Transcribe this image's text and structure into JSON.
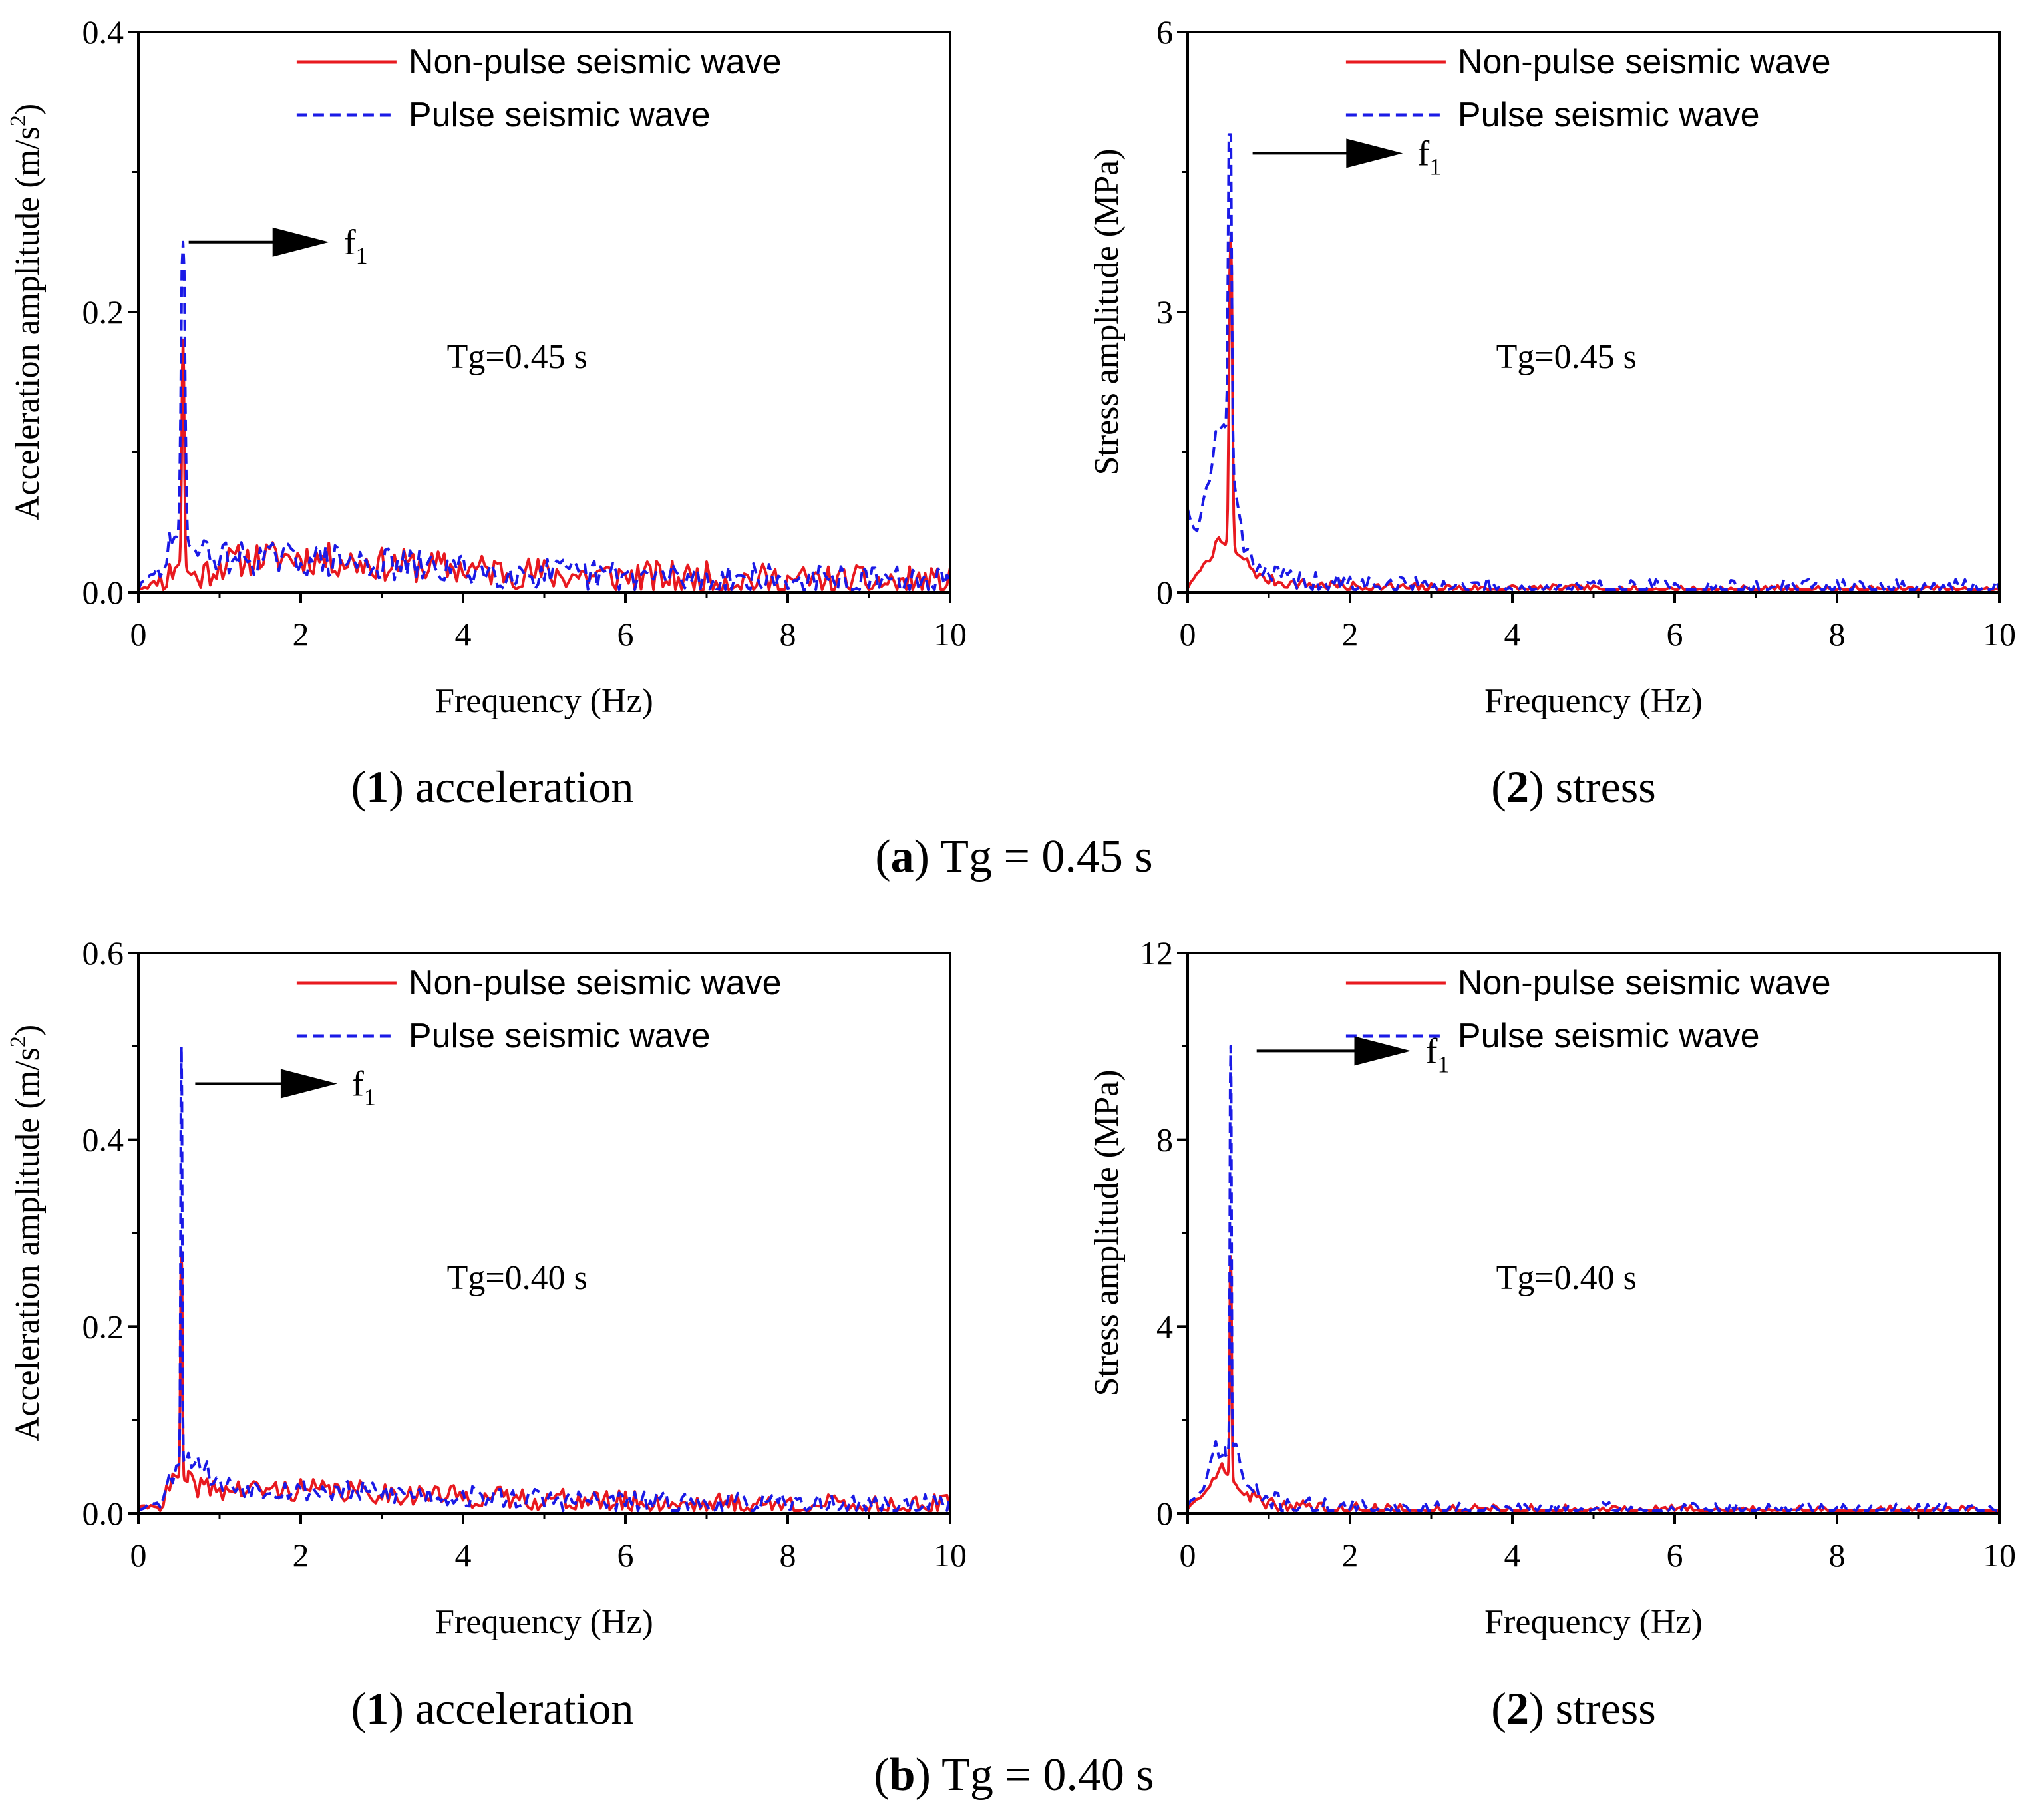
{
  "figure": {
    "rows": [
      {
        "label_letter": "a",
        "label_text": "Tg = 0.45 s",
        "panels": [
          {
            "caption_num": "1",
            "caption_text": "acceleration"
          },
          {
            "caption_num": "2",
            "caption_text": "stress"
          }
        ]
      },
      {
        "label_letter": "b",
        "label_text": "Tg = 0.40 s",
        "panels": [
          {
            "caption_num": "1",
            "caption_text": "acceleration"
          },
          {
            "caption_num": "2",
            "caption_text": "stress"
          }
        ]
      }
    ]
  },
  "colors": {
    "non_pulse": "#e8191f",
    "pulse": "#1a1ae6",
    "axis": "#000000"
  },
  "chart_data": [
    {
      "id": "a1",
      "type": "line",
      "title": "",
      "xlabel": "Frequency (Hz)",
      "ylabel_main": "Acceleration amplitude (m/s",
      "ylabel_sup": "2",
      "ylabel_tail": ")",
      "xlim": [
        0,
        10
      ],
      "ylim": [
        0,
        0.4
      ],
      "xticks": [
        0,
        2,
        4,
        6,
        8,
        10
      ],
      "xtick_labels": [
        "0",
        "2",
        "4",
        "6",
        "8",
        "10"
      ],
      "yticks": [
        0,
        0.2,
        0.4
      ],
      "ytick_labels": [
        "0.0",
        "0.2",
        "0.4"
      ],
      "legend": [
        "Non-pulse seismic wave",
        "Pulse seismic wave"
      ],
      "legend_position": "top-center",
      "annotation": "Tg=0.45 s",
      "annotation_at": [
        3.8,
        0.16
      ],
      "peak_label": "f",
      "peak_label_sub": "1",
      "arrow": {
        "from": [
          0.62,
          0.25
        ],
        "to": [
          2.35,
          0.25
        ]
      },
      "series": [
        {
          "name": "Non-pulse seismic wave",
          "style": "solid",
          "seed": 11,
          "peak_f": 0.55,
          "peak_v": 0.18,
          "peak_w": 0.04,
          "base": [
            [
              0,
              0.003
            ],
            [
              0.3,
              0.008
            ],
            [
              0.5,
              0.02
            ],
            [
              0.7,
              0.01
            ],
            [
              1,
              0.02
            ],
            [
              1.5,
              0.025
            ],
            [
              2,
              0.025
            ],
            [
              3,
              0.02
            ],
            [
              4,
              0.017
            ],
            [
              5,
              0.013
            ],
            [
              6,
              0.011
            ],
            [
              7,
              0.01
            ],
            [
              8,
              0.008
            ],
            [
              9,
              0.007
            ],
            [
              10,
              0.006
            ]
          ],
          "noise": 0.012
        },
        {
          "name": "Pulse seismic wave",
          "style": "dashed",
          "seed": 29,
          "peak_f": 0.55,
          "peak_v": 0.25,
          "peak_w": 0.06,
          "base": [
            [
              0,
              0.003
            ],
            [
              0.3,
              0.02
            ],
            [
              0.45,
              0.04
            ],
            [
              0.7,
              0.03
            ],
            [
              1,
              0.025
            ],
            [
              1.5,
              0.024
            ],
            [
              2,
              0.024
            ],
            [
              3,
              0.02
            ],
            [
              4,
              0.016
            ],
            [
              5,
              0.013
            ],
            [
              6,
              0.011
            ],
            [
              7,
              0.01
            ],
            [
              8,
              0.008
            ],
            [
              9,
              0.007
            ],
            [
              10,
              0.006
            ]
          ],
          "noise": 0.012
        }
      ]
    },
    {
      "id": "a2",
      "type": "line",
      "title": "",
      "xlabel": "Frequency (Hz)",
      "ylabel_main": "Stress amplitude (MPa)",
      "ylabel_sup": "",
      "ylabel_tail": "",
      "xlim": [
        0,
        10
      ],
      "ylim": [
        0,
        6
      ],
      "xticks": [
        0,
        2,
        4,
        6,
        8,
        10
      ],
      "xtick_labels": [
        "0",
        "2",
        "4",
        "6",
        "8",
        "10"
      ],
      "yticks": [
        0,
        3,
        6
      ],
      "ytick_labels": [
        "0",
        "3",
        "6"
      ],
      "legend": [
        "Non-pulse seismic wave",
        "Pulse seismic wave"
      ],
      "legend_position": "top-center",
      "annotation": "Tg=0.45 s",
      "annotation_at": [
        3.8,
        2.4
      ],
      "peak_label": "f",
      "peak_label_sub": "1",
      "arrow": {
        "from": [
          0.8,
          4.7
        ],
        "to": [
          2.65,
          4.7
        ]
      },
      "series": [
        {
          "name": "Non-pulse seismic wave",
          "style": "solid",
          "seed": 7,
          "peak_f": 0.53,
          "peak_v": 3.8,
          "peak_w": 0.05,
          "base": [
            [
              0,
              0.05
            ],
            [
              0.2,
              0.3
            ],
            [
              0.4,
              0.55
            ],
            [
              0.7,
              0.35
            ],
            [
              0.9,
              0.15
            ],
            [
              1.2,
              0.1
            ],
            [
              2,
              0.06
            ],
            [
              3,
              0.04
            ],
            [
              5,
              0.02
            ],
            [
              10,
              0.01
            ]
          ],
          "noise": 0.06
        },
        {
          "name": "Pulse seismic wave",
          "style": "dashed",
          "seed": 19,
          "peak_f": 0.52,
          "peak_v": 4.9,
          "peak_w": 0.05,
          "base": [
            [
              0,
              0.9
            ],
            [
              0.1,
              0.6
            ],
            [
              0.25,
              1.2
            ],
            [
              0.35,
              1.7
            ],
            [
              0.45,
              1.8
            ],
            [
              0.7,
              0.5
            ],
            [
              0.9,
              0.25
            ],
            [
              1.2,
              0.15
            ],
            [
              1.5,
              0.1
            ],
            [
              2,
              0.08
            ],
            [
              3,
              0.05
            ],
            [
              5,
              0.03
            ],
            [
              10,
              0.02
            ]
          ],
          "noise": 0.12
        }
      ]
    },
    {
      "id": "b1",
      "type": "line",
      "title": "",
      "xlabel": "Frequency (Hz)",
      "ylabel_main": "Acceleration amplitude (m/s",
      "ylabel_sup": "2",
      "ylabel_tail": ")",
      "xlim": [
        0,
        10
      ],
      "ylim": [
        0,
        0.6
      ],
      "xticks": [
        0,
        2,
        4,
        6,
        8,
        10
      ],
      "xtick_labels": [
        "0",
        "2",
        "4",
        "6",
        "8",
        "10"
      ],
      "yticks": [
        0,
        0.2,
        0.4,
        0.6
      ],
      "ytick_labels": [
        "0.0",
        "0.2",
        "0.4",
        "0.6"
      ],
      "legend": [
        "Non-pulse seismic wave",
        "Pulse seismic wave"
      ],
      "legend_position": "top-center",
      "annotation": "Tg=0.40 s",
      "annotation_at": [
        3.8,
        0.24
      ],
      "peak_label": "f",
      "peak_label_sub": "1",
      "arrow": {
        "from": [
          0.7,
          0.46
        ],
        "to": [
          2.45,
          0.46
        ]
      },
      "series": [
        {
          "name": "Non-pulse seismic wave",
          "style": "solid",
          "seed": 41,
          "peak_f": 0.53,
          "peak_v": 0.28,
          "peak_w": 0.03,
          "base": [
            [
              0,
              0.005
            ],
            [
              0.3,
              0.01
            ],
            [
              0.45,
              0.04
            ],
            [
              0.7,
              0.03
            ],
            [
              1,
              0.025
            ],
            [
              2,
              0.025
            ],
            [
              3,
              0.022
            ],
            [
              4,
              0.018
            ],
            [
              5,
              0.015
            ],
            [
              6,
              0.012
            ],
            [
              7,
              0.01
            ],
            [
              8,
              0.009
            ],
            [
              9,
              0.008
            ],
            [
              10,
              0.008
            ]
          ],
          "noise": 0.012
        },
        {
          "name": "Pulse seismic wave",
          "style": "dashed",
          "seed": 53,
          "peak_f": 0.53,
          "peak_v": 0.5,
          "peak_w": 0.025,
          "base": [
            [
              0,
              0.005
            ],
            [
              0.3,
              0.015
            ],
            [
              0.45,
              0.05
            ],
            [
              0.7,
              0.06
            ],
            [
              1,
              0.03
            ],
            [
              2,
              0.025
            ],
            [
              3,
              0.022
            ],
            [
              4,
              0.018
            ],
            [
              5,
              0.015
            ],
            [
              6,
              0.012
            ],
            [
              7,
              0.01
            ],
            [
              8,
              0.009
            ],
            [
              9,
              0.008
            ],
            [
              10,
              0.008
            ]
          ],
          "noise": 0.012
        }
      ]
    },
    {
      "id": "b2",
      "type": "line",
      "title": "",
      "xlabel": "Frequency (Hz)",
      "ylabel_main": "Stress amplitude (MPa)",
      "ylabel_sup": "",
      "ylabel_tail": "",
      "xlim": [
        0,
        10
      ],
      "ylim": [
        0,
        12
      ],
      "xticks": [
        0,
        2,
        4,
        6,
        8,
        10
      ],
      "xtick_labels": [
        "0",
        "2",
        "4",
        "6",
        "8",
        "10"
      ],
      "yticks": [
        0,
        4,
        8,
        12
      ],
      "ytick_labels": [
        "0",
        "4",
        "8",
        "12"
      ],
      "legend": [
        "Non-pulse seismic wave",
        "Pulse seismic wave"
      ],
      "legend_position": "top-center",
      "annotation": "Tg=0.40 s",
      "annotation_at": [
        3.8,
        4.8
      ],
      "peak_label": "f",
      "peak_label_sub": "1",
      "arrow": {
        "from": [
          0.85,
          9.9
        ],
        "to": [
          2.75,
          9.9
        ]
      },
      "series": [
        {
          "name": "Non-pulse seismic wave",
          "style": "solid",
          "seed": 63,
          "peak_f": 0.53,
          "peak_v": 5.5,
          "peak_w": 0.03,
          "base": [
            [
              0,
              0.1
            ],
            [
              0.2,
              0.4
            ],
            [
              0.4,
              1.0
            ],
            [
              0.6,
              0.6
            ],
            [
              0.8,
              0.35
            ],
            [
              1,
              0.2
            ],
            [
              1.5,
              0.12
            ],
            [
              2,
              0.08
            ],
            [
              3,
              0.05
            ],
            [
              5,
              0.03
            ],
            [
              10,
              0.02
            ]
          ],
          "noise": 0.15
        },
        {
          "name": "Pulse seismic wave",
          "style": "dashed",
          "seed": 71,
          "peak_f": 0.53,
          "peak_v": 10.0,
          "peak_w": 0.025,
          "base": [
            [
              0,
              0.2
            ],
            [
              0.2,
              0.5
            ],
            [
              0.35,
              1.5
            ],
            [
              0.45,
              1.2
            ],
            [
              0.6,
              1.5
            ],
            [
              0.7,
              0.6
            ],
            [
              0.9,
              0.35
            ],
            [
              1.2,
              0.2
            ],
            [
              1.5,
              0.15
            ],
            [
              2,
              0.1
            ],
            [
              3,
              0.06
            ],
            [
              5,
              0.04
            ],
            [
              10,
              0.03
            ]
          ],
          "noise": 0.2
        }
      ]
    }
  ]
}
